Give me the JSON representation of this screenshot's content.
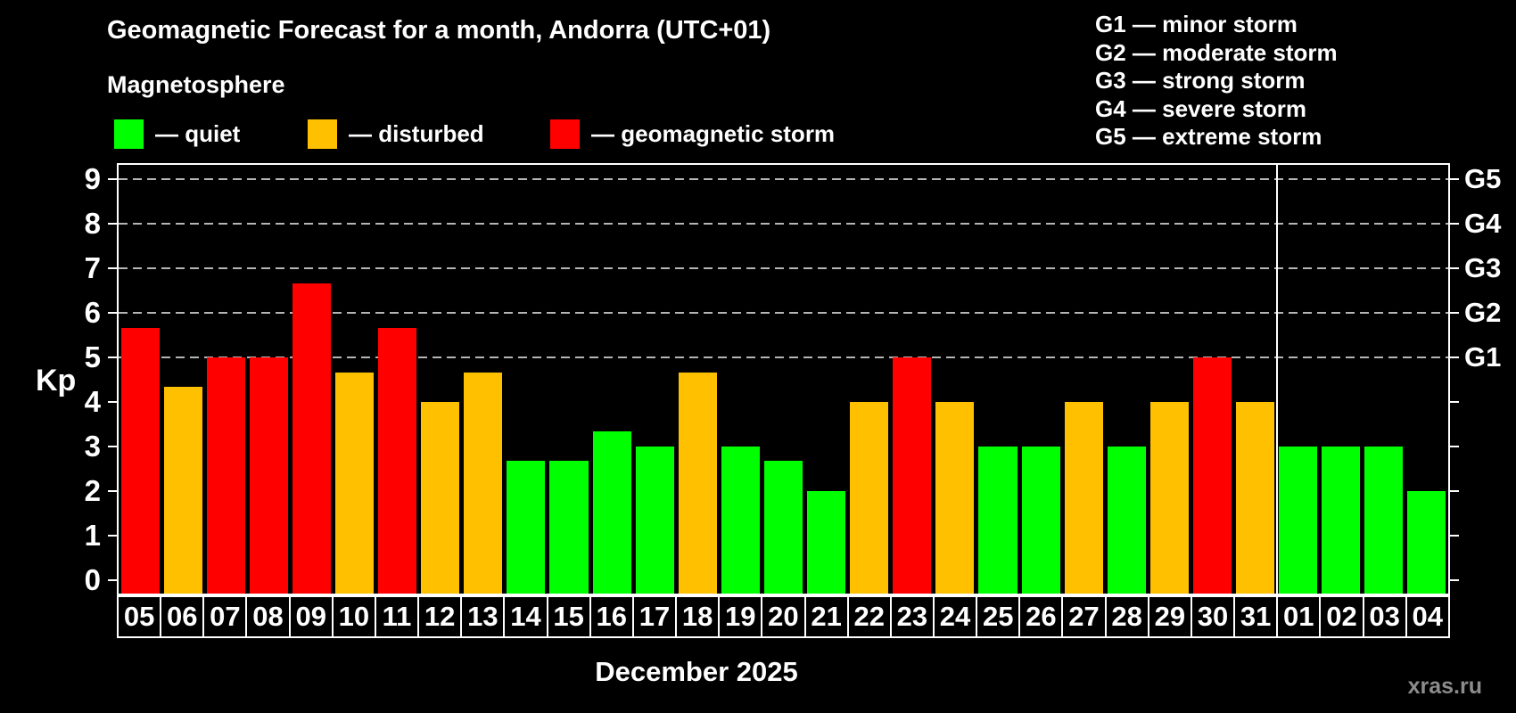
{
  "header": {
    "title": "Geomagnetic Forecast for a month, Andorra (UTC+01)",
    "subtitle": "Magnetosphere"
  },
  "legend": {
    "quiet": {
      "label": "— quiet",
      "color": "#00ff00"
    },
    "disturbed": {
      "label": "— disturbed",
      "color": "#ffc000"
    },
    "storm": {
      "label": "— geomagnetic storm",
      "color": "#ff0000"
    }
  },
  "g_legend": {
    "items": [
      "G1 — minor storm",
      "G2 — moderate storm",
      "G3 — strong storm",
      "G4 — severe storm",
      "G5 — extreme storm"
    ]
  },
  "chart_data": {
    "type": "bar",
    "title": "Geomagnetic Forecast for a month, Andorra (UTC+01)",
    "ylabel": "Kp",
    "xlabel": "December 2025",
    "categories": [
      "05",
      "06",
      "07",
      "08",
      "09",
      "10",
      "11",
      "12",
      "13",
      "14",
      "15",
      "16",
      "17",
      "18",
      "19",
      "20",
      "21",
      "22",
      "23",
      "24",
      "25",
      "26",
      "27",
      "28",
      "29",
      "30",
      "31",
      "01",
      "02",
      "03",
      "04"
    ],
    "values": [
      5.67,
      4.33,
      5,
      5,
      6.67,
      4.67,
      5.67,
      4,
      4.67,
      2.67,
      2.67,
      3.33,
      3,
      4.67,
      3,
      2.67,
      2,
      4,
      5,
      4,
      3,
      3,
      4,
      3,
      4,
      5,
      4,
      3,
      3,
      3,
      2
    ],
    "statuses": [
      "storm",
      "disturbed",
      "storm",
      "storm",
      "storm",
      "disturbed",
      "storm",
      "disturbed",
      "disturbed",
      "quiet",
      "quiet",
      "quiet",
      "quiet",
      "disturbed",
      "quiet",
      "quiet",
      "quiet",
      "disturbed",
      "storm",
      "disturbed",
      "quiet",
      "quiet",
      "disturbed",
      "quiet",
      "disturbed",
      "storm",
      "disturbed",
      "quiet",
      "quiet",
      "quiet",
      "quiet"
    ],
    "status_colors": {
      "quiet": "#00ff00",
      "disturbed": "#ffc000",
      "storm": "#ff0000"
    },
    "ylim": [
      0,
      9
    ],
    "yticks": [
      0,
      1,
      2,
      3,
      4,
      5,
      6,
      7,
      8,
      9
    ],
    "gridlines_at": [
      5,
      6,
      7,
      8,
      9
    ],
    "grid_style": "dashed",
    "right_axis_labels": {
      "5": "G1",
      "6": "G2",
      "7": "G3",
      "8": "G4",
      "9": "G5"
    },
    "month_divider_after_category": "31",
    "legend_position": "top-left"
  },
  "footer": {
    "month_label": "December 2025",
    "watermark": "xras.ru"
  }
}
